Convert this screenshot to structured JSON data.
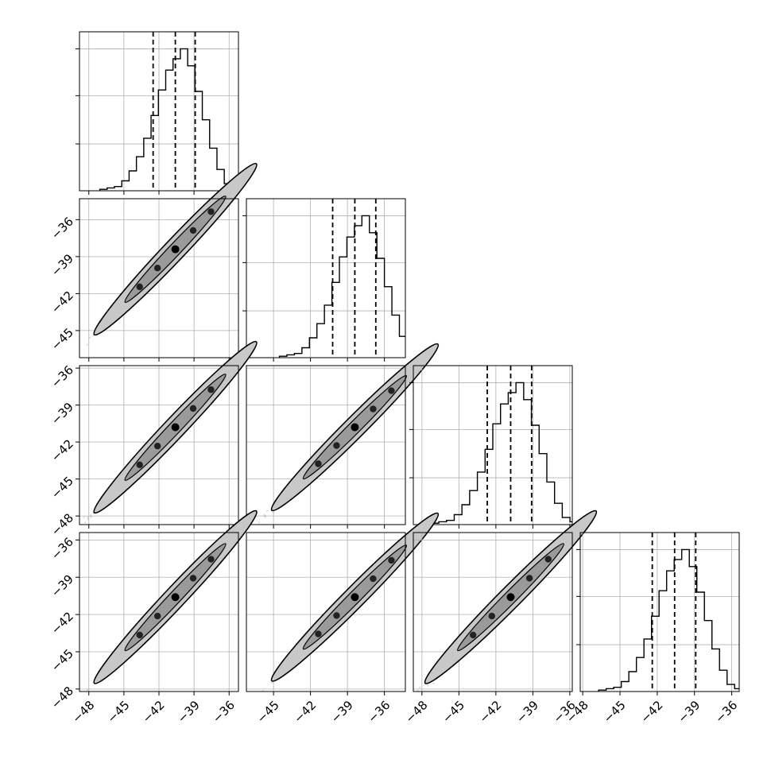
{
  "chart_data": {
    "type": "corner",
    "grid": true,
    "colors": {
      "line": "#000000",
      "grid": "#b0b0b0",
      "scatter": "#808080",
      "fill": "#c8c8c8"
    },
    "params": [
      {
        "range": [
          -48.8,
          -35.2
        ],
        "median": -40.6,
        "q_lo": -42.5,
        "q_hi": -38.9,
        "ticks": [
          -48,
          -45,
          -42,
          -39,
          -36
        ],
        "tick_labels": [
          "−48",
          "−45",
          "−42",
          "−39",
          "−36"
        ]
      },
      {
        "range": [
          -47.2,
          -34.3
        ],
        "median": -38.4,
        "q_lo": -40.2,
        "q_hi": -36.7,
        "ticks": [
          -45,
          -42,
          -39,
          -36
        ],
        "tick_labels": [
          "−45",
          "−42",
          "−39",
          "−36"
        ]
      },
      {
        "range": [
          -48.7,
          -35.8
        ],
        "median": -40.8,
        "q_lo": -42.7,
        "q_hi": -39.1,
        "ticks": [
          -48,
          -45,
          -42,
          -39,
          -36
        ],
        "tick_labels": [
          "−48",
          "−45",
          "−42",
          "−39",
          "−36"
        ]
      },
      {
        "range": [
          -48.2,
          -35.4
        ],
        "median": -40.6,
        "q_lo": -42.4,
        "q_hi": -38.9,
        "ticks": [
          -48,
          -45,
          -42,
          -39,
          -36
        ],
        "tick_labels": [
          "−48",
          "−45",
          "−42",
          "−39",
          "−36"
        ]
      }
    ],
    "hist_heights": [
      0.01,
      0.02,
      0.03,
      0.07,
      0.14,
      0.24,
      0.37,
      0.53,
      0.71,
      0.85,
      0.93,
      1.0,
      0.88,
      0.7,
      0.5,
      0.3,
      0.15,
      0.05,
      0.02
    ],
    "hist_ylim": [
      0,
      1.12
    ],
    "hist_yticks": [
      0.33,
      0.67,
      1.0
    ],
    "scatter_spread": 0.55,
    "contour_halfwidth": 0.32
  }
}
